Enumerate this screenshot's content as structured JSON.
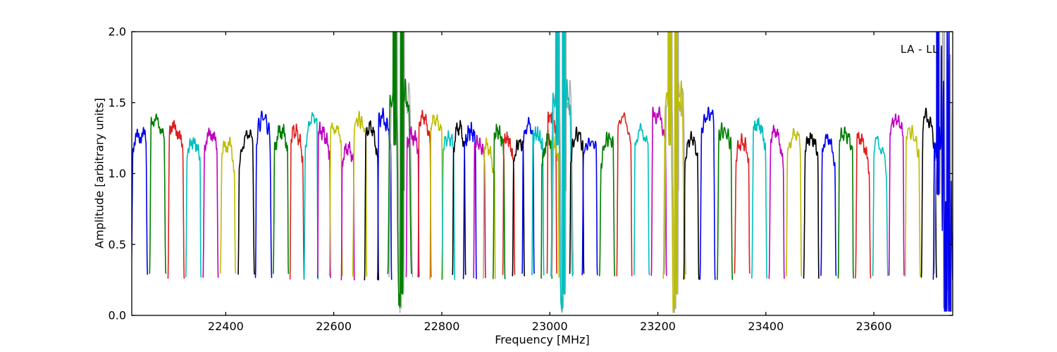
{
  "chart_data": {
    "type": "line",
    "title": "",
    "corner_label": "LA - LL",
    "xlabel": "Frequency [MHz]",
    "ylabel": "Amplitude [arbitrary units]",
    "xlim": [
      22226,
      23746
    ],
    "ylim": [
      0.0,
      2.0
    ],
    "xtick_values": [
      22400,
      22600,
      22800,
      23000,
      23200,
      23400,
      23600
    ],
    "xtick_labels": [
      "22400",
      "22600",
      "22800",
      "23000",
      "23200",
      "23400",
      "23600"
    ],
    "ytick_values": [
      0.0,
      0.5,
      1.0,
      1.5,
      2.0
    ],
    "ytick_labels": [
      "0.0",
      "0.5",
      "1.0",
      "1.5",
      "2.0"
    ],
    "grid": false,
    "legend": null,
    "baseline_level": 0.27,
    "colors": {
      "b": "#0000ee",
      "g": "#007d00",
      "r": "#e02020",
      "c": "#00bfbf",
      "m": "#bf00bf",
      "y": "#bdbd00",
      "k": "#000000",
      "ghost": "#aaaaaa",
      "axis": "#000000",
      "background": "#ffffff"
    },
    "segments_note": "Each entry is one sub-band bandpass trace: [color, center_MHz, width_MHz, peak_amplitude, type?, deep_dip_min?]. type 'spikes' = two off-scale spike clusters with a deep central dip; 'chaos' = wild full-range oscillations.",
    "segments": [
      [
        "b",
        22240,
        30,
        1.27
      ],
      [
        "g",
        22274,
        30,
        1.38
      ],
      [
        "r",
        22308,
        30,
        1.33
      ],
      [
        "c",
        22340,
        28,
        1.22
      ],
      [
        "m",
        22372,
        28,
        1.28
      ],
      [
        "y",
        22404,
        28,
        1.21
      ],
      [
        "k",
        22438,
        30,
        1.28
      ],
      [
        "b",
        22470,
        30,
        1.4
      ],
      [
        "g",
        22502,
        28,
        1.3
      ],
      [
        "r",
        22532,
        26,
        1.3
      ],
      [
        "c",
        22558,
        26,
        1.4
      ],
      [
        "m",
        22582,
        24,
        1.3
      ],
      [
        "y",
        22604,
        24,
        1.32
      ],
      [
        "m",
        22626,
        24,
        1.18
      ],
      [
        "y",
        22648,
        26,
        1.38
      ],
      [
        "k",
        22670,
        26,
        1.33
      ],
      [
        "b",
        22694,
        26,
        1.4
      ],
      [
        "g",
        22722,
        44,
        1.65,
        "spikes",
        0.05
      ],
      [
        "m",
        22746,
        24,
        1.27
      ],
      [
        "r",
        22768,
        24,
        1.4
      ],
      [
        "y",
        22790,
        24,
        1.38
      ],
      [
        "c",
        22812,
        24,
        1.25
      ],
      [
        "k",
        22832,
        24,
        1.33
      ],
      [
        "b",
        22852,
        24,
        1.3
      ],
      [
        "m",
        22870,
        22,
        1.22
      ],
      [
        "y",
        22888,
        22,
        1.2
      ],
      [
        "g",
        22906,
        22,
        1.3
      ],
      [
        "r",
        22924,
        22,
        1.25
      ],
      [
        "k",
        22942,
        22,
        1.22
      ],
      [
        "b",
        22960,
        22,
        1.35
      ],
      [
        "c",
        22978,
        22,
        1.28
      ],
      [
        "g",
        22994,
        20,
        1.25
      ],
      [
        "r",
        23004,
        18,
        1.4
      ],
      [
        "y",
        23010,
        14,
        1.22
      ],
      [
        "c",
        23022,
        40,
        1.65,
        "spikes",
        0.03
      ],
      [
        "k",
        23050,
        26,
        1.28
      ],
      [
        "b",
        23074,
        28,
        1.22
      ],
      [
        "g",
        23106,
        28,
        1.25
      ],
      [
        "r",
        23138,
        28,
        1.4
      ],
      [
        "c",
        23170,
        28,
        1.3
      ],
      [
        "m",
        23202,
        28,
        1.42
      ],
      [
        "y",
        23230,
        40,
        1.65,
        "spikes",
        0.04
      ],
      [
        "k",
        23262,
        28,
        1.25
      ],
      [
        "b",
        23292,
        28,
        1.42
      ],
      [
        "g",
        23324,
        28,
        1.3
      ],
      [
        "r",
        23356,
        28,
        1.22
      ],
      [
        "c",
        23388,
        28,
        1.35
      ],
      [
        "m",
        23420,
        28,
        1.3
      ],
      [
        "y",
        23452,
        28,
        1.28
      ],
      [
        "k",
        23484,
        28,
        1.25
      ],
      [
        "b",
        23516,
        28,
        1.25
      ],
      [
        "g",
        23548,
        28,
        1.28
      ],
      [
        "r",
        23580,
        28,
        1.25
      ],
      [
        "c",
        23612,
        28,
        1.22
      ],
      [
        "m",
        23642,
        28,
        1.38
      ],
      [
        "y",
        23672,
        28,
        1.3
      ],
      [
        "k",
        23702,
        28,
        1.4
      ],
      [
        "b",
        23728,
        36,
        1.62,
        "chaos",
        0.03
      ]
    ]
  }
}
